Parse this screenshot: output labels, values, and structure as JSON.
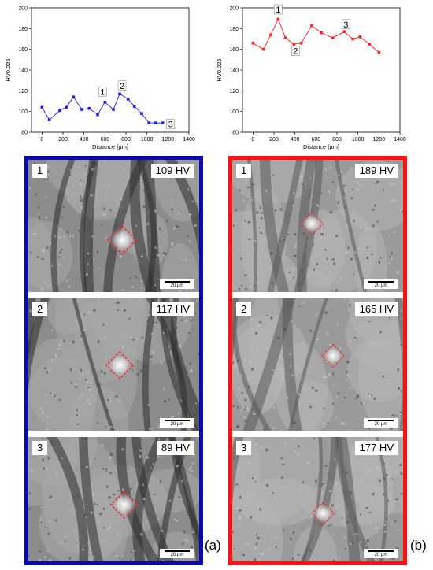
{
  "chart_data": [
    {
      "type": "line",
      "xlabel": "Distance [µm]",
      "ylabel": "HV0.025",
      "xlim": [
        -100,
        1400
      ],
      "ylim": [
        80,
        200
      ],
      "xticks": [
        0,
        200,
        400,
        600,
        800,
        1000,
        1200,
        1400
      ],
      "yticks": [
        80,
        100,
        120,
        140,
        160,
        180,
        200
      ],
      "series": [
        {
          "color": "#1f1fe0",
          "marker": "square",
          "x": [
            0,
            70,
            170,
            230,
            300,
            380,
            450,
            530,
            600,
            680,
            740,
            820,
            880,
            950,
            1020,
            1080,
            1150
          ],
          "y": [
            104,
            92,
            101,
            104,
            114,
            102,
            103,
            97,
            109,
            102,
            117,
            112,
            105,
            98,
            89,
            89,
            89
          ]
        }
      ],
      "annotations": [
        {
          "label": "1",
          "x": 600,
          "y": 109
        },
        {
          "label": "2",
          "x": 740,
          "y": 117
        },
        {
          "label": "3",
          "x": 1150,
          "y": 89
        }
      ]
    },
    {
      "type": "line",
      "xlabel": "Distance [µm]",
      "ylabel": "HV0.025",
      "xlim": [
        -100,
        1400
      ],
      "ylim": [
        80,
        200
      ],
      "xticks": [
        0,
        200,
        400,
        600,
        800,
        1000,
        1200,
        1400
      ],
      "yticks": [
        80,
        100,
        120,
        140,
        160,
        180,
        200
      ],
      "series": [
        {
          "color": "#ff2020",
          "marker": "square",
          "x": [
            0,
            100,
            170,
            240,
            310,
            390,
            460,
            560,
            650,
            760,
            870,
            950,
            1020,
            1110,
            1200
          ],
          "y": [
            166,
            160,
            174,
            189,
            171,
            165,
            166,
            183,
            176,
            171,
            177,
            170,
            172,
            165,
            157
          ]
        }
      ],
      "annotations": [
        {
          "label": "1",
          "x": 240,
          "y": 189
        },
        {
          "label": "2",
          "x": 390,
          "y": 165
        },
        {
          "label": "3",
          "x": 870,
          "y": 177
        }
      ]
    }
  ],
  "panels": [
    {
      "caption": "(a)",
      "frame_color": "#0a0ab0",
      "images": [
        {
          "number": "1",
          "hardness": "109 HV",
          "scale": "20 µm"
        },
        {
          "number": "2",
          "hardness": "117 HV",
          "scale": "20 µm"
        },
        {
          "number": "3",
          "hardness": "89 HV",
          "scale": "20 µm"
        }
      ]
    },
    {
      "caption": "(b)",
      "frame_color": "#ff1010",
      "images": [
        {
          "number": "1",
          "hardness": "189 HV",
          "scale": "20 µm"
        },
        {
          "number": "2",
          "hardness": "165 HV",
          "scale": "20 µm"
        },
        {
          "number": "3",
          "hardness": "177 HV",
          "scale": "20 µm"
        }
      ]
    }
  ]
}
